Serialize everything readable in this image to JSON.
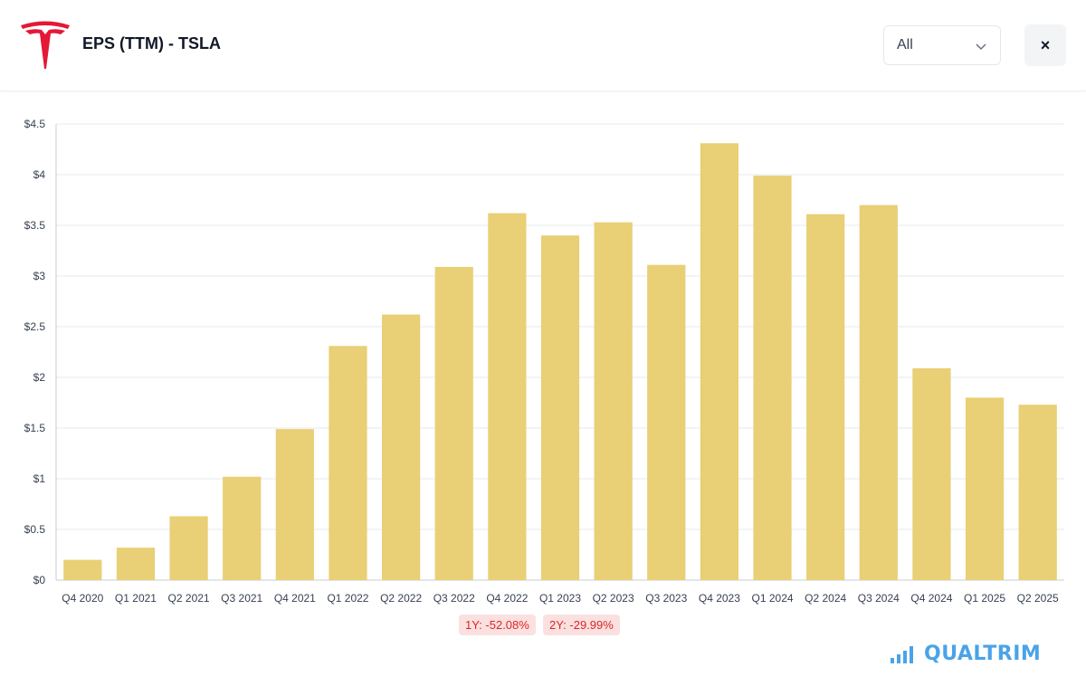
{
  "header": {
    "title": "EPS (TTM) - TSLA",
    "logo_icon": "tesla-logo-icon",
    "range_select": {
      "value": "All",
      "icon": "chevron-down-icon"
    },
    "close_button": {
      "label": "×",
      "icon": "close-icon"
    }
  },
  "changes": {
    "one_year": "1Y: -52.08%",
    "two_year": "2Y: -29.99%"
  },
  "brand": {
    "text": "QUALTRIM",
    "icon": "bar-signal-icon"
  },
  "colors": {
    "bar": "#e9cf75",
    "logo": "#e31937",
    "brand": "#4aa3e8",
    "badge_bg": "#fbe0e0",
    "badge_text": "#dc2626"
  },
  "chart_data": {
    "type": "bar",
    "categories": [
      "Q4 2020",
      "Q1 2021",
      "Q2 2021",
      "Q3 2021",
      "Q4 2021",
      "Q1 2022",
      "Q2 2022",
      "Q3 2022",
      "Q4 2022",
      "Q1 2023",
      "Q2 2023",
      "Q3 2023",
      "Q4 2023",
      "Q1 2024",
      "Q2 2024",
      "Q3 2024",
      "Q4 2024",
      "Q1 2025",
      "Q2 2025"
    ],
    "series": [
      {
        "values": [
          0.2,
          0.32,
          0.63,
          1.02,
          1.49,
          2.31,
          2.62,
          3.09,
          3.62,
          3.4,
          3.53,
          3.11,
          4.31,
          3.99,
          3.61,
          3.7,
          2.09,
          1.8,
          1.73
        ]
      }
    ],
    "ylim": [
      0,
      4.5
    ],
    "yticks": [
      "$0",
      "$0.5",
      "$1",
      "$1.5",
      "$2",
      "$2.5",
      "$3",
      "$3.5",
      "$4",
      "$4.5"
    ],
    "xlabel": "",
    "ylabel": "",
    "grid": true,
    "legend": "none"
  }
}
